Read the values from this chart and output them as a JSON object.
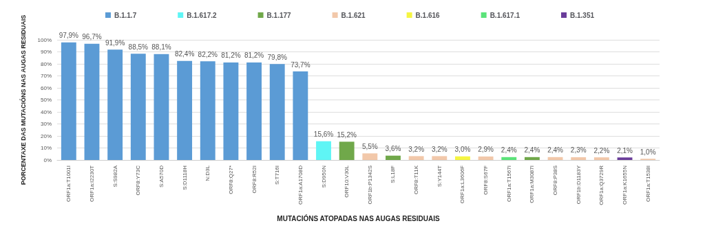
{
  "chart_data": {
    "type": "bar",
    "xlabel": "MUTACIÓNS ATOPADAS NAS AUGAS RESIDUAIS",
    "ylabel": "PORCENTAXE DAS MUTACIÓNS NAS AUGAS RESIDUAIS",
    "categories": [
      "ORF1a:T1001I",
      "ORF1a:I2230T",
      "S:S982A",
      "ORF8:Y73C",
      "S:A570D",
      "S:D1118H",
      "N:D3L",
      "ORF8:Q27*",
      "ORF8:R52I",
      "S:T716I",
      "ORF1a:A1708D",
      "S:D950N",
      "ORF10:V30L",
      "ORF1b:P1342S",
      "S:L18F",
      "ORF8:T11K",
      "S:Y144T",
      "ORF1a:L3606F",
      "ORF8:S67F",
      "ORF1a:T1567I",
      "ORF1a:M3087I",
      "ORF8:P38S",
      "ORF1b:D1183Y",
      "ORF1a:Q3729R",
      "ORF1a:K1655N",
      "ORF1a:T1538I"
    ],
    "series": [
      {
        "name": "B.1.1.7",
        "color": "#5b9bd5",
        "values": [
          97.9,
          96.7,
          91.9,
          88.5,
          88.1,
          82.4,
          82.2,
          81.2,
          81.2,
          79.8,
          73.7,
          null,
          null,
          null,
          null,
          null,
          null,
          null,
          null,
          null,
          null,
          null,
          null,
          null,
          null,
          null
        ],
        "value_labels": [
          "97,9%",
          "96,7%",
          "91,9%",
          "88,5%",
          "88,1%",
          "82,4%",
          "82,2%",
          "81,2%",
          "81,2%",
          "79,8%",
          "73,7%",
          null,
          null,
          null,
          null,
          null,
          null,
          null,
          null,
          null,
          null,
          null,
          null,
          null,
          null,
          null
        ]
      },
      {
        "name": "B.1.617.2",
        "color": "#5ff5f5",
        "values": [
          null,
          null,
          null,
          null,
          null,
          null,
          null,
          null,
          null,
          null,
          null,
          15.6,
          null,
          null,
          null,
          null,
          null,
          null,
          null,
          null,
          null,
          null,
          null,
          null,
          null,
          null
        ],
        "value_labels": [
          null,
          null,
          null,
          null,
          null,
          null,
          null,
          null,
          null,
          null,
          null,
          "15,6%",
          null,
          null,
          null,
          null,
          null,
          null,
          null,
          null,
          null,
          null,
          null,
          null,
          null,
          null
        ]
      },
      {
        "name": "B.1.177",
        "color": "#70a84a",
        "values": [
          null,
          null,
          null,
          null,
          null,
          null,
          null,
          null,
          null,
          null,
          null,
          null,
          15.2,
          null,
          3.6,
          null,
          null,
          null,
          null,
          null,
          2.4,
          null,
          null,
          null,
          null,
          null
        ],
        "value_labels": [
          null,
          null,
          null,
          null,
          null,
          null,
          null,
          null,
          null,
          null,
          null,
          null,
          "15,2%",
          null,
          "3,6%",
          null,
          null,
          null,
          null,
          null,
          "2,4%",
          null,
          null,
          null,
          null,
          null
        ]
      },
      {
        "name": "B.1.621",
        "color": "#f2c8aa",
        "values": [
          null,
          null,
          null,
          null,
          null,
          null,
          null,
          null,
          null,
          null,
          null,
          null,
          null,
          5.5,
          null,
          3.2,
          3.2,
          null,
          2.9,
          null,
          null,
          2.4,
          2.3,
          2.2,
          null,
          1.0
        ],
        "value_labels": [
          null,
          null,
          null,
          null,
          null,
          null,
          null,
          null,
          null,
          null,
          null,
          null,
          null,
          "5,5%",
          null,
          "3,2%",
          "3,2%",
          null,
          "2,9%",
          null,
          null,
          "2,4%",
          "2,3%",
          "2,2%",
          null,
          "1,0%"
        ]
      },
      {
        "name": "B.1.616",
        "color": "#f5f542",
        "values": [
          null,
          null,
          null,
          null,
          null,
          null,
          null,
          null,
          null,
          null,
          null,
          null,
          null,
          null,
          null,
          null,
          null,
          3.0,
          null,
          null,
          null,
          null,
          null,
          null,
          null,
          null
        ],
        "value_labels": [
          null,
          null,
          null,
          null,
          null,
          null,
          null,
          null,
          null,
          null,
          null,
          null,
          null,
          null,
          null,
          null,
          null,
          "3,0%",
          null,
          null,
          null,
          null,
          null,
          null,
          null,
          null
        ]
      },
      {
        "name": "B.1.617.1",
        "color": "#5be37a",
        "values": [
          null,
          null,
          null,
          null,
          null,
          null,
          null,
          null,
          null,
          null,
          null,
          null,
          null,
          null,
          null,
          null,
          null,
          null,
          null,
          2.4,
          null,
          null,
          null,
          null,
          null,
          null
        ],
        "value_labels": [
          null,
          null,
          null,
          null,
          null,
          null,
          null,
          null,
          null,
          null,
          null,
          null,
          null,
          null,
          null,
          null,
          null,
          null,
          null,
          "2,4%",
          null,
          null,
          null,
          null,
          null,
          null
        ]
      },
      {
        "name": "B.1.351",
        "color": "#6a3d9a",
        "values": [
          null,
          null,
          null,
          null,
          null,
          null,
          null,
          null,
          null,
          null,
          null,
          null,
          null,
          null,
          null,
          null,
          null,
          null,
          null,
          null,
          null,
          null,
          null,
          null,
          2.1,
          null
        ],
        "value_labels": [
          null,
          null,
          null,
          null,
          null,
          null,
          null,
          null,
          null,
          null,
          null,
          null,
          null,
          null,
          null,
          null,
          null,
          null,
          null,
          null,
          null,
          null,
          null,
          null,
          "2,1%",
          null
        ]
      }
    ],
    "ylim": [
      0,
      100
    ],
    "yticks": [
      {
        "value": 0,
        "label": "0%"
      },
      {
        "value": 10,
        "label": "10%"
      },
      {
        "value": 20,
        "label": "20%"
      },
      {
        "value": 30,
        "label": "30%"
      },
      {
        "value": 40,
        "label": "40%"
      },
      {
        "value": 50,
        "label": "50%"
      },
      {
        "value": 60,
        "label": "60%"
      },
      {
        "value": 70,
        "label": "70%"
      },
      {
        "value": 80,
        "label": "80%"
      },
      {
        "value": 90,
        "label": "90%"
      },
      {
        "value": 100,
        "label": "100%"
      }
    ],
    "grid": "y",
    "legend": "top"
  }
}
